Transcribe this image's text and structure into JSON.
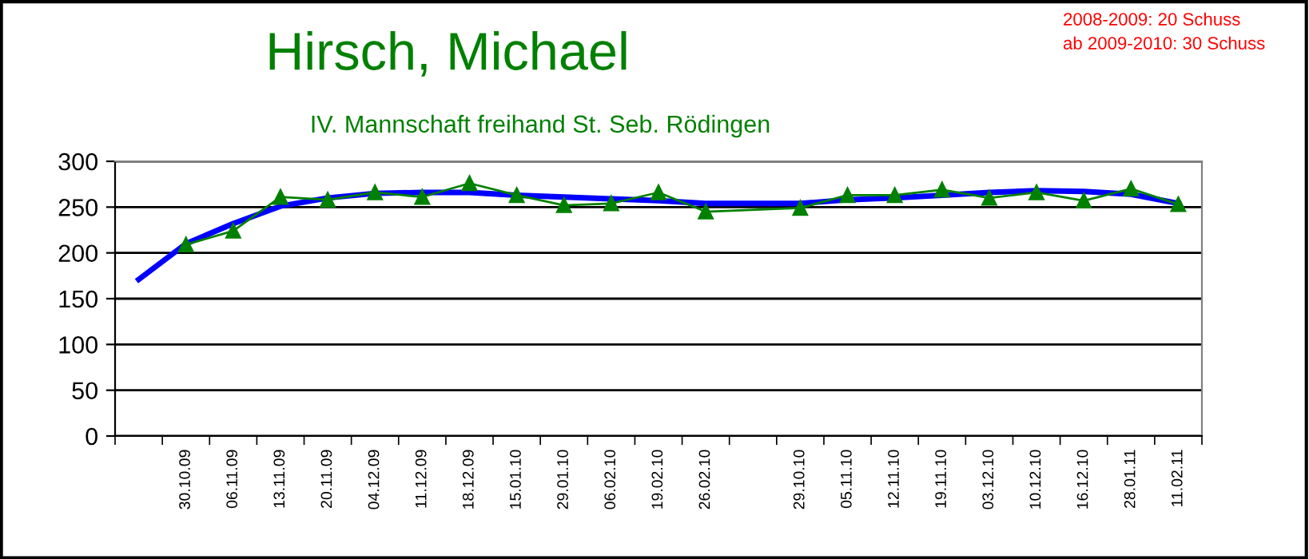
{
  "chart_data": {
    "type": "line",
    "title": "Hirsch, Michael",
    "subtitle": "IV. Mannschaft freihand St. Seb. Rödingen",
    "annotations": [
      "2008-2009: 20 Schuss",
      "ab 2009-2010: 30 Schuss"
    ],
    "categories": [
      null,
      "30.10.09",
      "06.11.09",
      "13.11.09",
      "20.11.09",
      "04.12.09",
      "11.12.09",
      "18.12.09",
      "15.01.10",
      "29.01.10",
      "06.02.10",
      "19.02.10",
      "26.02.10",
      null,
      "29.10.10",
      "05.11.10",
      "12.11.10",
      "19.11.10",
      "03.12.10",
      "10.12.10",
      "16.12.10",
      "28.01.11",
      "11.02.11"
    ],
    "series": [
      {
        "color": "#008000",
        "marker": "triangle",
        "values": [
          null,
          209,
          224,
          261,
          258,
          266,
          261,
          276,
          263,
          252,
          254,
          266,
          245,
          null,
          249,
          263,
          263,
          269,
          260,
          266,
          257,
          270,
          253
        ]
      },
      {
        "color": "#0000ff",
        "marker": "none",
        "values": [
          171,
          210,
          232,
          251,
          260,
          265,
          266,
          266,
          263,
          261,
          259,
          257,
          254,
          254,
          254,
          258,
          260,
          263,
          266,
          268,
          267,
          264,
          254
        ]
      }
    ],
    "ylim": [
      0,
      300
    ],
    "yticks": [
      0,
      50,
      100,
      150,
      200,
      250,
      300
    ],
    "grid": "y"
  }
}
